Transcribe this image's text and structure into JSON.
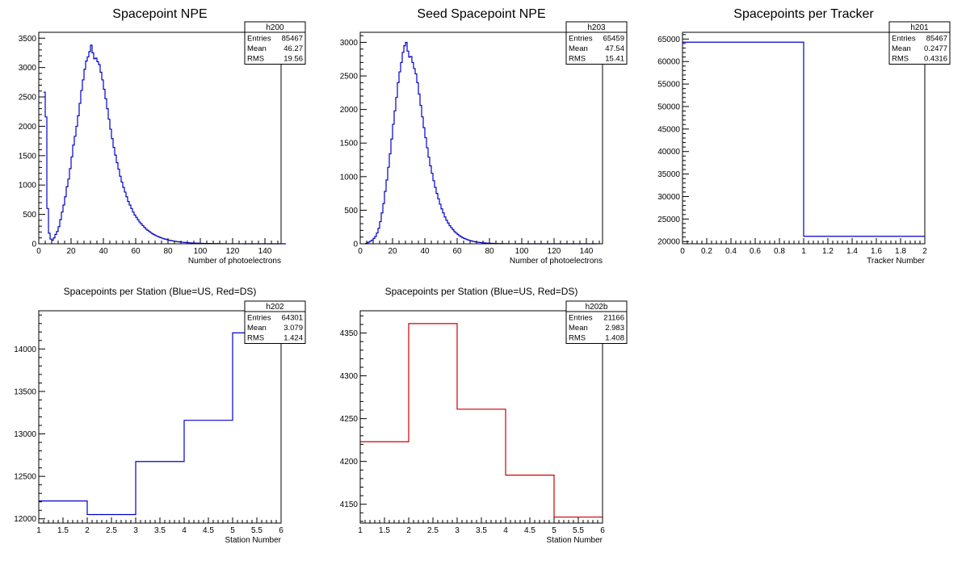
{
  "colors": {
    "blue": "#0000cc",
    "red": "#cc0000",
    "frame": "#000000"
  },
  "chart_data": [
    {
      "id": "h200",
      "type": "histogram",
      "title": "Spacepoint NPE",
      "xlabel": "Number of photoelectrons",
      "xlim": [
        0,
        150
      ],
      "ylim": [
        0,
        3600
      ],
      "xticks": [
        0,
        20,
        40,
        60,
        80,
        100,
        120,
        140
      ],
      "xtick_labels": [
        "0",
        "20",
        "40",
        "60",
        "80",
        "100",
        "120",
        "140"
      ],
      "yticks": [
        0,
        500,
        1000,
        1500,
        2000,
        2500,
        3000,
        3500
      ],
      "ytick_labels": [
        "0",
        "500",
        "1000",
        "1500",
        "2000",
        "2500",
        "3000",
        "3500"
      ],
      "bin_edges_start": 3,
      "bin_width": 1,
      "values": [
        2580,
        2160,
        600,
        180,
        80,
        60,
        100,
        160,
        210,
        290,
        410,
        540,
        660,
        800,
        970,
        1100,
        1280,
        1480,
        1680,
        1830,
        2000,
        2180,
        2390,
        2610,
        2790,
        2970,
        3110,
        3180,
        3270,
        3380,
        3250,
        3150,
        3160,
        3100,
        3050,
        2920,
        2790,
        2630,
        2470,
        2300,
        2120,
        1950,
        1790,
        1640,
        1510,
        1380,
        1270,
        1150,
        1050,
        960,
        880,
        800,
        720,
        660,
        600,
        540,
        490,
        450,
        410,
        370,
        340,
        310,
        280,
        250,
        230,
        210,
        190,
        170,
        155,
        140,
        128,
        116,
        105,
        95,
        86,
        78,
        70,
        63,
        57,
        52,
        47,
        42,
        38,
        34,
        31,
        28,
        25,
        22,
        20,
        18,
        16,
        14,
        13,
        12,
        11,
        10,
        9,
        8,
        7,
        6,
        6,
        5,
        5,
        4,
        4,
        3,
        3,
        3,
        2,
        2,
        2,
        2,
        1,
        1,
        1,
        1,
        1,
        1,
        1,
        1,
        1,
        1,
        1,
        0,
        0,
        0,
        0,
        0,
        0,
        0,
        0,
        0,
        0,
        0,
        0,
        0,
        0,
        0,
        0,
        0,
        0,
        0,
        0,
        0,
        0,
        0,
        0,
        0,
        0,
        0
      ],
      "color": "#0000cc",
      "stats": {
        "name": "h200",
        "rows": [
          {
            "label": "Entries",
            "value": "85467"
          },
          {
            "label": "Mean",
            "value": "46.27"
          },
          {
            "label": "RMS",
            "value": "19.56"
          }
        ]
      }
    },
    {
      "id": "h203",
      "type": "histogram",
      "title": "Seed Spacepoint NPE",
      "xlabel": "Number of photoelectrons",
      "xlim": [
        0,
        150
      ],
      "ylim": [
        0,
        3150
      ],
      "xticks": [
        0,
        20,
        40,
        60,
        80,
        100,
        120,
        140
      ],
      "xtick_labels": [
        "0",
        "20",
        "40",
        "60",
        "80",
        "100",
        "120",
        "140"
      ],
      "yticks": [
        0,
        500,
        1000,
        1500,
        2000,
        2500,
        3000
      ],
      "ytick_labels": [
        "0",
        "500",
        "1000",
        "1500",
        "2000",
        "2500",
        "3000"
      ],
      "bin_edges_start": 3,
      "bin_width": 1,
      "values": [
        5,
        15,
        25,
        40,
        55,
        80,
        110,
        160,
        230,
        330,
        460,
        600,
        780,
        950,
        1140,
        1340,
        1560,
        1780,
        1980,
        2180,
        2400,
        2560,
        2700,
        2850,
        2950,
        3000,
        2870,
        2780,
        2790,
        2700,
        2610,
        2530,
        2400,
        2230,
        2060,
        1890,
        1730,
        1580,
        1430,
        1290,
        1160,
        1050,
        940,
        840,
        750,
        670,
        590,
        520,
        460,
        400,
        350,
        310,
        270,
        240,
        210,
        180,
        160,
        140,
        120,
        105,
        90,
        80,
        70,
        60,
        52,
        45,
        39,
        34,
        29,
        25,
        22,
        19,
        16,
        14,
        12,
        10,
        9,
        8,
        7,
        6,
        5,
        4,
        4,
        3,
        3,
        2,
        2,
        2,
        1,
        1,
        1,
        1,
        1,
        1,
        0,
        0,
        0,
        0,
        0,
        0,
        0,
        0,
        0,
        0,
        0,
        0,
        0,
        0,
        0,
        0,
        0,
        0,
        0,
        0,
        0,
        0,
        0,
        0,
        0,
        0,
        0,
        0,
        0,
        0,
        0,
        0,
        0,
        0,
        0,
        0,
        0,
        0,
        0,
        0,
        0,
        0,
        0,
        0,
        0,
        0,
        0,
        0,
        0,
        0
      ],
      "color": "#0000cc",
      "stats": {
        "name": "h203",
        "rows": [
          {
            "label": "Entries",
            "value": "65459"
          },
          {
            "label": "Mean",
            "value": "47.54"
          },
          {
            "label": "RMS",
            "value": "15.41"
          }
        ]
      }
    },
    {
      "id": "h201",
      "type": "histogram",
      "title": "Spacepoints per Tracker",
      "xlabel": "Tracker Number",
      "xlim": [
        0,
        2
      ],
      "ylim": [
        19500,
        66500
      ],
      "xticks": [
        0,
        0.2,
        0.4,
        0.6,
        0.8,
        1,
        1.2,
        1.4,
        1.6,
        1.8,
        2
      ],
      "xtick_labels": [
        "0",
        "0.2",
        "0.4",
        "0.6",
        "0.8",
        "1",
        "1.2",
        "1.4",
        "1.6",
        "1.8",
        "2"
      ],
      "yticks": [
        20000,
        25000,
        30000,
        35000,
        40000,
        45000,
        50000,
        55000,
        60000,
        65000
      ],
      "ytick_labels": [
        "20000",
        "25000",
        "30000",
        "35000",
        "40000",
        "45000",
        "50000",
        "55000",
        "60000",
        "65000"
      ],
      "bin_edges_start": 0,
      "bin_width": 1,
      "values": [
        64301,
        21166
      ],
      "color": "#0000cc",
      "stats": {
        "name": "h201",
        "rows": [
          {
            "label": "Entries",
            "value": "85467"
          },
          {
            "label": "Mean",
            "value": "0.2477"
          },
          {
            "label": "RMS",
            "value": "0.4316"
          }
        ]
      }
    },
    {
      "id": "h202",
      "type": "histogram",
      "title": "Spacepoints per Station (Blue=US, Red=DS)",
      "xlabel": "Station Number",
      "xlim": [
        1,
        6
      ],
      "ylim": [
        11950,
        14450
      ],
      "xticks": [
        1,
        1.5,
        2,
        2.5,
        3,
        3.5,
        4,
        4.5,
        5,
        5.5,
        6
      ],
      "xtick_labels": [
        "1",
        "1.5",
        "2",
        "2.5",
        "3",
        "3.5",
        "4",
        "4.5",
        "5",
        "5.5",
        "6"
      ],
      "yticks": [
        12000,
        12500,
        13000,
        13500,
        14000
      ],
      "ytick_labels": [
        "12000",
        "12500",
        "13000",
        "13500",
        "14000"
      ],
      "bin_edges_start": 1,
      "bin_width": 1,
      "values": [
        12210,
        12050,
        12675,
        13160,
        14190
      ],
      "color": "#0000cc",
      "stats": {
        "name": "h202",
        "rows": [
          {
            "label": "Entries",
            "value": "64301"
          },
          {
            "label": "Mean",
            "value": "3.079"
          },
          {
            "label": "RMS",
            "value": "1.424"
          }
        ]
      }
    },
    {
      "id": "h202b",
      "type": "histogram",
      "title": "Spacepoints per Station (Blue=US, Red=DS)",
      "xlabel": "Station Number",
      "xlim": [
        1,
        6
      ],
      "ylim": [
        4128,
        4376
      ],
      "xticks": [
        1,
        1.5,
        2,
        2.5,
        3,
        3.5,
        4,
        4.5,
        5,
        5.5,
        6
      ],
      "xtick_labels": [
        "1",
        "1.5",
        "2",
        "2.5",
        "3",
        "3.5",
        "4",
        "4.5",
        "5",
        "5.5",
        "6"
      ],
      "yticks": [
        4150,
        4200,
        4250,
        4300,
        4350
      ],
      "ytick_labels": [
        "4150",
        "4200",
        "4250",
        "4300",
        "4350"
      ],
      "bin_edges_start": 1,
      "bin_width": 1,
      "values": [
        4223,
        4361,
        4261,
        4184,
        4135
      ],
      "color": "#cc0000",
      "stats": {
        "name": "h202b",
        "rows": [
          {
            "label": "Entries",
            "value": "21166"
          },
          {
            "label": "Mean",
            "value": "2.983"
          },
          {
            "label": "RMS",
            "value": "1.408"
          }
        ]
      }
    }
  ]
}
